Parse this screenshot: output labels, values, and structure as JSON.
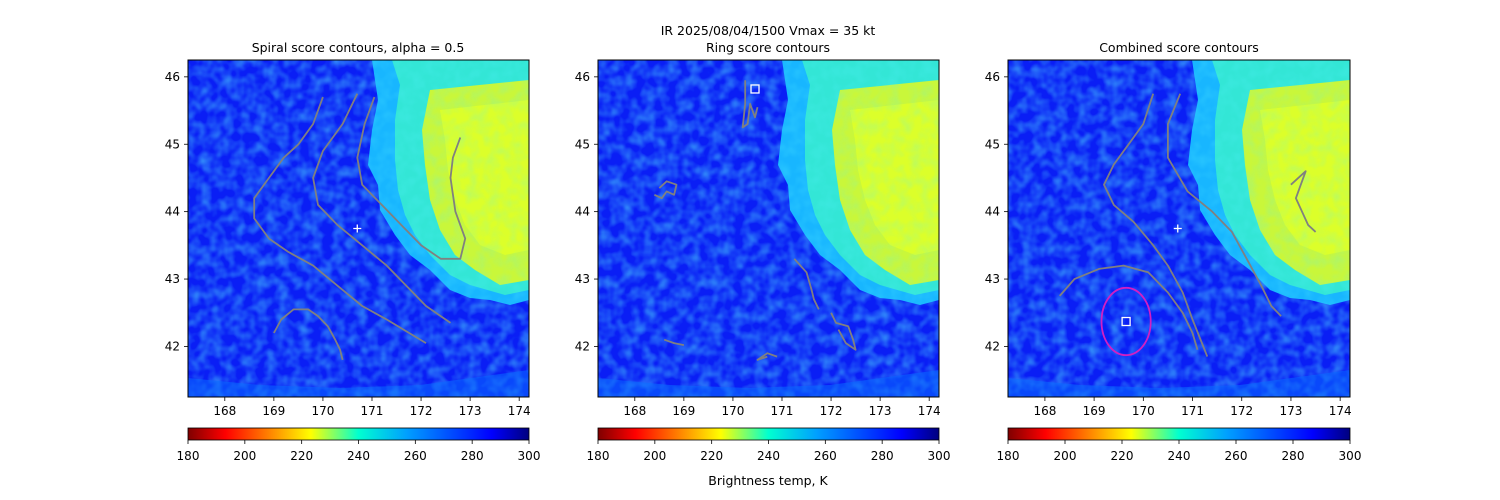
{
  "figure": {
    "suptitle_line1": "IR  2025/08/04/1500    Vmax = 35 kt",
    "colorbar_label": "Brightness temp, K"
  },
  "colormap": "jet",
  "colors": {
    "contour": "#808080",
    "marker": "#ffffff",
    "ring_circle": "#d21fc3",
    "cold_field": "#0a1ef5",
    "warm_cloud": "#d6ff24"
  },
  "chart_data": [
    {
      "type": "heatmap",
      "title": "Spiral score contours, alpha =  0.5",
      "xlim": [
        167.25,
        174.2
      ],
      "ylim": [
        41.25,
        46.25
      ],
      "xticks": [
        168,
        169,
        170,
        171,
        172,
        173,
        174
      ],
      "yticks": [
        42,
        43,
        44,
        45,
        46
      ],
      "colorbar": {
        "vmin": 180,
        "vmax": 300,
        "ticks": [
          180,
          200,
          220,
          240,
          260,
          280,
          300
        ]
      },
      "contours": [
        [
          [
            170.0,
            45.7
          ],
          [
            169.8,
            45.3
          ],
          [
            169.5,
            45.0
          ],
          [
            169.2,
            44.8
          ],
          [
            168.9,
            44.5
          ],
          [
            168.6,
            44.2
          ],
          [
            168.6,
            43.9
          ],
          [
            168.9,
            43.6
          ],
          [
            169.3,
            43.4
          ],
          [
            169.8,
            43.2
          ],
          [
            170.3,
            42.9
          ],
          [
            170.8,
            42.6
          ],
          [
            171.3,
            42.4
          ],
          [
            172.1,
            42.05
          ]
        ],
        [
          [
            170.7,
            45.75
          ],
          [
            170.4,
            45.3
          ],
          [
            170.0,
            44.9
          ],
          [
            169.8,
            44.5
          ],
          [
            169.9,
            44.1
          ],
          [
            170.3,
            43.8
          ],
          [
            170.8,
            43.5
          ],
          [
            171.3,
            43.2
          ],
          [
            171.7,
            42.9
          ],
          [
            172.1,
            42.6
          ],
          [
            172.6,
            42.35
          ]
        ],
        [
          [
            171.05,
            45.7
          ],
          [
            170.85,
            45.3
          ],
          [
            170.7,
            44.8
          ],
          [
            170.8,
            44.4
          ],
          [
            171.2,
            44.1
          ],
          [
            171.6,
            43.8
          ],
          [
            172.0,
            43.5
          ],
          [
            172.4,
            43.3
          ],
          [
            172.8,
            43.3
          ],
          [
            172.9,
            43.6
          ],
          [
            172.7,
            44.0
          ],
          [
            172.6,
            44.5
          ],
          [
            172.65,
            44.8
          ],
          [
            172.8,
            45.1
          ]
        ],
        [
          [
            169.0,
            42.2
          ],
          [
            169.15,
            42.4
          ],
          [
            169.4,
            42.55
          ],
          [
            169.7,
            42.55
          ],
          [
            169.9,
            42.45
          ],
          [
            170.1,
            42.3
          ],
          [
            170.25,
            42.1
          ],
          [
            170.35,
            41.95
          ],
          [
            170.4,
            41.8
          ]
        ]
      ],
      "markers": [
        {
          "symbol": "plus",
          "x": 170.7,
          "y": 43.75
        }
      ]
    },
    {
      "type": "heatmap",
      "title": "Ring score contours",
      "xlim": [
        167.25,
        174.2
      ],
      "ylim": [
        41.25,
        46.25
      ],
      "xticks": [
        168,
        169,
        170,
        171,
        172,
        173,
        174
      ],
      "yticks": [
        42,
        43,
        44,
        45,
        46
      ],
      "colorbar": {
        "vmin": 180,
        "vmax": 300,
        "ticks": [
          180,
          200,
          220,
          240,
          260,
          280,
          300
        ]
      },
      "contours": [
        [
          [
            170.25,
            45.95
          ],
          [
            170.25,
            45.6
          ],
          [
            170.2,
            45.25
          ],
          [
            170.3,
            45.3
          ],
          [
            170.35,
            45.6
          ],
          [
            170.45,
            45.4
          ],
          [
            170.5,
            45.55
          ]
        ],
        [
          [
            168.5,
            44.35
          ],
          [
            168.65,
            44.45
          ],
          [
            168.85,
            44.4
          ],
          [
            168.8,
            44.25
          ],
          [
            168.65,
            44.3
          ],
          [
            168.55,
            44.2
          ],
          [
            168.4,
            44.25
          ]
        ],
        [
          [
            171.25,
            43.3
          ],
          [
            171.5,
            43.1
          ],
          [
            171.6,
            42.85
          ],
          [
            171.65,
            42.7
          ],
          [
            171.75,
            42.55
          ]
        ],
        [
          [
            172.0,
            42.5
          ],
          [
            172.1,
            42.35
          ],
          [
            172.35,
            42.3
          ],
          [
            172.45,
            42.1
          ],
          [
            172.5,
            41.95
          ],
          [
            172.3,
            42.05
          ],
          [
            172.15,
            42.25
          ]
        ],
        [
          [
            170.9,
            41.85
          ],
          [
            170.7,
            41.9
          ],
          [
            170.5,
            41.8
          ],
          [
            170.7,
            41.85
          ]
        ],
        [
          [
            168.6,
            42.1
          ],
          [
            168.8,
            42.05
          ],
          [
            169.0,
            42.02
          ]
        ]
      ],
      "markers": [
        {
          "symbol": "square",
          "x": 170.45,
          "y": 45.82
        }
      ]
    },
    {
      "type": "heatmap",
      "title": "Combined score contours",
      "xlim": [
        167.25,
        174.2
      ],
      "ylim": [
        41.25,
        46.25
      ],
      "xticks": [
        168,
        169,
        170,
        171,
        172,
        173,
        174
      ],
      "yticks": [
        42,
        43,
        44,
        45,
        46
      ],
      "colorbar": {
        "vmin": 180,
        "vmax": 300,
        "ticks": [
          180,
          200,
          220,
          240,
          260,
          280,
          300
        ]
      },
      "contours": [
        [
          [
            170.2,
            45.75
          ],
          [
            170.0,
            45.3
          ],
          [
            169.7,
            45.0
          ],
          [
            169.4,
            44.7
          ],
          [
            169.2,
            44.4
          ],
          [
            169.4,
            44.1
          ],
          [
            169.8,
            43.85
          ],
          [
            170.2,
            43.5
          ],
          [
            170.5,
            43.2
          ],
          [
            170.8,
            42.8
          ],
          [
            171.0,
            42.4
          ],
          [
            171.3,
            41.85
          ]
        ],
        [
          [
            170.75,
            45.75
          ],
          [
            170.5,
            45.3
          ],
          [
            170.5,
            44.8
          ],
          [
            170.9,
            44.3
          ],
          [
            171.4,
            44.0
          ],
          [
            171.8,
            43.7
          ],
          [
            172.1,
            43.3
          ],
          [
            172.4,
            42.9
          ],
          [
            172.6,
            42.6
          ],
          [
            172.8,
            42.45
          ]
        ],
        [
          [
            168.3,
            42.75
          ],
          [
            168.6,
            43.0
          ],
          [
            169.1,
            43.15
          ],
          [
            169.6,
            43.2
          ],
          [
            170.1,
            43.1
          ],
          [
            170.5,
            42.8
          ],
          [
            170.8,
            42.5
          ],
          [
            171.0,
            42.2
          ],
          [
            171.1,
            41.95
          ]
        ],
        [
          [
            173.0,
            44.4
          ],
          [
            173.3,
            44.6
          ],
          [
            173.1,
            44.2
          ],
          [
            173.35,
            43.8
          ],
          [
            173.5,
            43.7
          ]
        ]
      ],
      "markers": [
        {
          "symbol": "plus",
          "x": 170.7,
          "y": 43.75
        },
        {
          "symbol": "square",
          "x": 169.65,
          "y": 42.37
        },
        {
          "symbol": "circle",
          "x": 169.65,
          "y": 42.37,
          "r": 0.5
        }
      ]
    }
  ]
}
